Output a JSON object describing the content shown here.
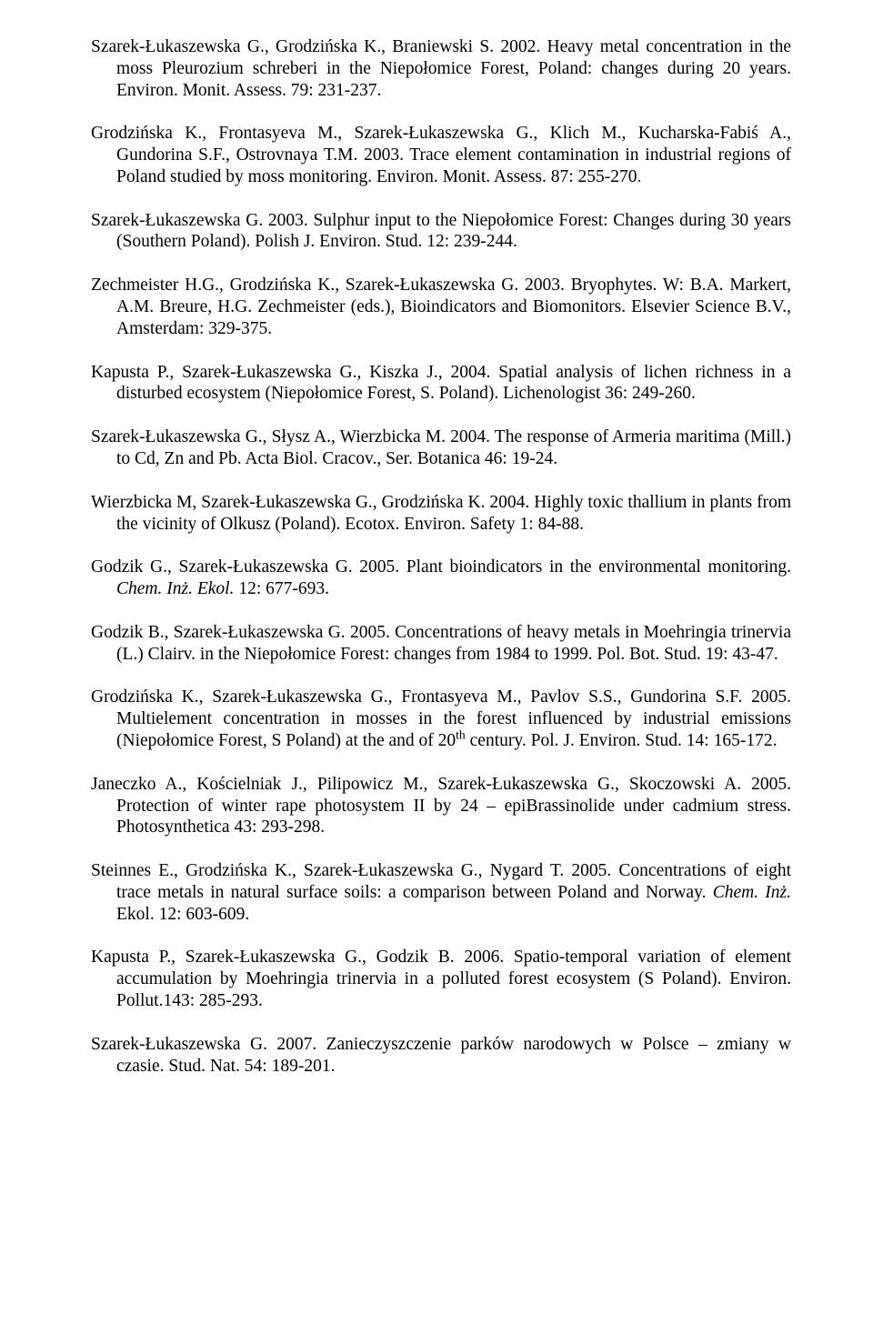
{
  "refs": [
    {
      "html": "Szarek-Łukaszewska G., Grodzińska K., Braniewski S. 2002. Heavy metal concentration in the moss Pleurozium schreberi in the Niepołomice Forest, Poland: changes during 20 years. Environ. Monit. Assess. 79: 231-237."
    },
    {
      "html": "Grodzińska K., Frontasyeva M., Szarek-Łukaszewska G., Klich M., Kucharska-Fabiś A., Gundorina S.F., Ostrovnaya T.M. 2003. Trace element contamination in industrial regions of Poland studied by moss monitoring. Environ. Monit. Assess. 87: 255-270."
    },
    {
      "html": "Szarek-Łukaszewska G. 2003. Sulphur input to the Niepołomice Forest: Changes during 30 years (Southern Poland). Polish J. Environ. Stud. 12: 239-244."
    },
    {
      "html": "Zechmeister H.G., Grodzińska K., Szarek-Łukaszewska G. 2003. Bryophytes. W: B.A. Markert, A.M. Breure, H.G. Zechmeister (eds.), Bioindicators and Biomonitors. Elsevier Science B.V., Amsterdam: 329-375."
    },
    {
      "html": "Kapusta  P., Szarek-Łukaszewska G., Kiszka J., 2004. Spatial analysis of lichen richness in a disturbed ecosystem (Niepołomice Forest, S. Poland). Lichenologist 36: 249-260."
    },
    {
      "html": "Szarek-Łukaszewska G., Słysz A., Wierzbicka M. 2004. The response of Armeria maritima (Mill.) to Cd, Zn and Pb. Acta Biol. Cracov., Ser. Botanica 46: 19-24."
    },
    {
      "html": "Wierzbicka M, Szarek-Łukaszewska G., Grodzińska K. 2004. Highly toxic thallium in plants from the vicinity of Olkusz (Poland). Ecotox. Environ. Safety 1: 84-88."
    },
    {
      "html": "Godzik G., Szarek-Łukaszewska G. 2005. Plant bioindicators in the environmental monitoring. <span class=\"italic\">Chem. Inż. Ekol.</span> 12: 677-693."
    },
    {
      "html": "Godzik B., Szarek-Łukaszewska G. 2005. Concentrations of heavy metals in Moehringia trinervia (L.) Clairv. in the Niepołomice Forest: changes from 1984 to 1999. Pol. Bot. Stud. 19: 43-47."
    },
    {
      "html": "Grodzińska K., Szarek-Łukaszewska G., Frontasyeva M., Pavlov S.S., Gundorina S.F. 2005. Multielement concentration in mosses in the forest influenced by industrial emissions (Niepołomice Forest, S Poland) at the and of 20<sup>th</sup> century. Pol. J. Environ. Stud. 14: 165-172."
    },
    {
      "html": "Janeczko A., Kościelniak J., Pilipowicz M., Szarek-Łukaszewska G., Skoczowski A. 2005. Protection of winter rape photosystem II by 24 – epiBrassinolide under cadmium stress. Photosynthetica 43: 293-298."
    },
    {
      "html": "Steinnes E., Grodzińska K., Szarek-Łukaszewska G., Nygard T. 2005. Concentrations of eight trace metals in natural surface soils: a comparison between Poland and Norway. <span class=\"italic\">Chem. Inż.</span> Ekol. 12: 603-609."
    },
    {
      "html": "Kapusta P., Szarek-Łukaszewska G., Godzik B. 2006. Spatio-temporal variation of element accumulation by Moehringia trinervia in a polluted forest ecosystem (S Poland). Environ. Pollut.143: 285-293."
    },
    {
      "html": "Szarek-Łukaszewska G. 2007. Zanieczyszczenie parków narodowych w Polsce – zmiany w czasie. Stud. Nat. 54: 189-201."
    }
  ]
}
